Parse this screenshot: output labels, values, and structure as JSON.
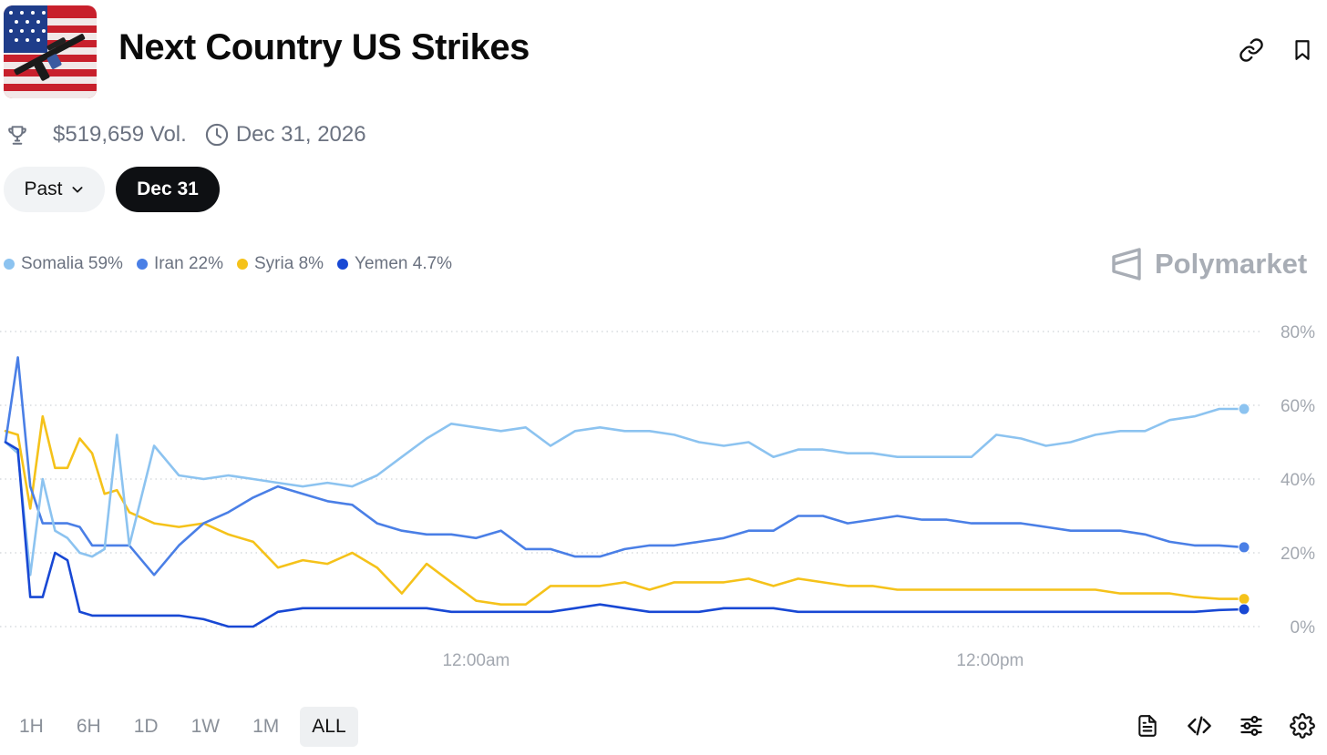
{
  "header": {
    "title": "Next Country US Strikes",
    "thumbnail_icon": "us-flag-with-rifle-image",
    "link_icon": "link-icon",
    "bookmark_icon": "bookmark-icon"
  },
  "meta": {
    "volume": "$519,659 Vol.",
    "end_date": "Dec 31, 2026",
    "volume_icon": "trophy-icon",
    "date_icon": "clock-icon"
  },
  "filters": {
    "past_label": "Past",
    "selected_label": "Dec 31"
  },
  "legend": [
    {
      "label": "Somalia 59%",
      "color": "#8cc3f0"
    },
    {
      "label": "Iran 22%",
      "color": "#4a7fe6"
    },
    {
      "label": "Syria 8%",
      "color": "#f5c21a"
    },
    {
      "label": "Yemen 4.7%",
      "color": "#1848d4"
    }
  ],
  "brand": {
    "name": "Polymarket"
  },
  "chart_data": {
    "type": "line",
    "x_tick_labels": [
      "12:00am",
      "12:00pm"
    ],
    "y_tick_labels": [
      "0%",
      "20%",
      "40%",
      "60%",
      "80%"
    ],
    "ylim": [
      0,
      80
    ],
    "y_unit": "%",
    "grid": true,
    "legend_position": "top-left",
    "x": [
      0,
      1,
      2,
      3,
      4,
      5,
      6,
      7,
      8,
      9,
      10,
      12,
      14,
      16,
      18,
      20,
      22,
      24,
      26,
      28,
      30,
      32,
      34,
      36,
      38,
      40,
      42,
      44,
      46,
      48,
      50,
      52,
      54,
      56,
      58,
      60,
      62,
      64,
      66,
      68,
      70,
      72,
      74,
      76,
      78,
      80,
      82,
      84,
      86,
      88,
      90,
      92,
      94,
      96,
      98,
      100
    ],
    "series": [
      {
        "name": "Somalia",
        "color": "#8cc3f0",
        "values": [
          50,
          47,
          14,
          40,
          26,
          24,
          20,
          19,
          21,
          52,
          22,
          49,
          41,
          40,
          41,
          40,
          39,
          38,
          39,
          38,
          41,
          46,
          51,
          55,
          54,
          53,
          54,
          49,
          53,
          54,
          53,
          53,
          52,
          50,
          49,
          50,
          46,
          48,
          48,
          47,
          47,
          46,
          46,
          46,
          46,
          52,
          51,
          49,
          50,
          52,
          53,
          53,
          56,
          57,
          59,
          59
        ]
      },
      {
        "name": "Iran",
        "color": "#4a7fe6",
        "values": [
          50,
          73,
          38,
          28,
          28,
          28,
          27,
          22,
          22,
          22,
          22,
          14,
          22,
          28,
          31,
          35,
          38,
          36,
          34,
          33,
          28,
          26,
          25,
          25,
          24,
          26,
          21,
          21,
          19,
          19,
          21,
          22,
          22,
          23,
          24,
          26,
          26,
          30,
          30,
          28,
          29,
          30,
          29,
          29,
          28,
          28,
          28,
          27,
          26,
          26,
          26,
          25,
          23,
          22,
          22,
          21.5
        ]
      },
      {
        "name": "Syria",
        "color": "#f5c21a",
        "values": [
          53,
          52,
          32,
          57,
          43,
          43,
          51,
          47,
          36,
          37,
          31,
          28,
          27,
          28,
          25,
          23,
          16,
          18,
          17,
          20,
          16,
          9,
          17,
          12,
          7,
          6,
          6,
          11,
          11,
          11,
          12,
          10,
          12,
          12,
          12,
          13,
          11,
          13,
          12,
          11,
          11,
          10,
          10,
          10,
          10,
          10,
          10,
          10,
          10,
          10,
          9,
          9,
          9,
          8,
          7.5,
          7.5
        ]
      },
      {
        "name": "Yemen",
        "color": "#1848d4",
        "values": [
          50,
          48,
          8,
          8,
          20,
          18,
          4,
          3,
          3,
          3,
          3,
          3,
          3,
          2,
          0,
          0,
          4,
          5,
          5,
          5,
          5,
          5,
          5,
          4,
          4,
          4,
          4,
          4,
          5,
          6,
          5,
          4,
          4,
          4,
          5,
          5,
          5,
          4,
          4,
          4,
          4,
          4,
          4,
          4,
          4,
          4,
          4,
          4,
          4,
          4,
          4,
          4,
          4,
          4,
          4.5,
          4.7
        ]
      }
    ]
  },
  "time_ranges": [
    "1H",
    "6H",
    "1D",
    "1W",
    "1M",
    "ALL"
  ],
  "active_range": "ALL",
  "tools": {
    "doc_icon": "document-icon",
    "embed_icon": "code-icon",
    "sliders_icon": "sliders-icon",
    "settings_icon": "gear-icon"
  }
}
